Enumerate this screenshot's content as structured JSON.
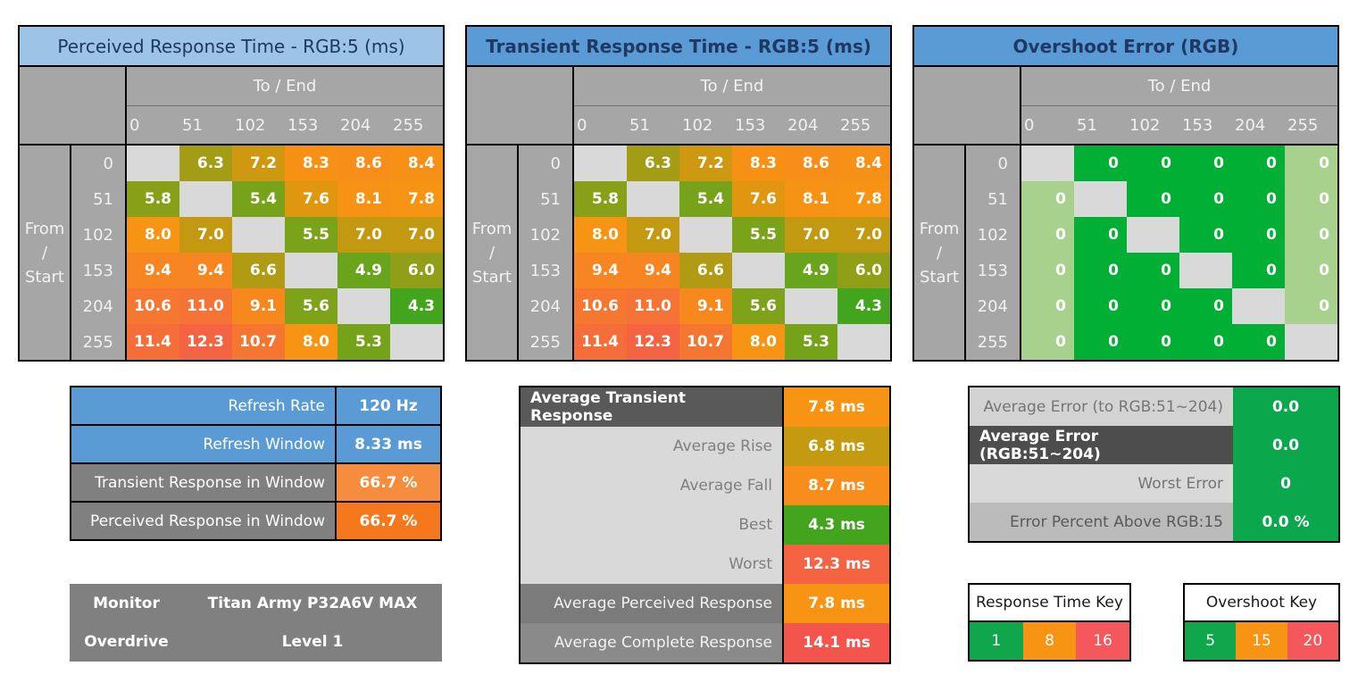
{
  "colors": {
    "title_bg_light_blue": "#9DC3E6",
    "title_bg_blue": "#5B9BD5",
    "title_text": "#1F3864",
    "header_gray": "#A6A6A6",
    "diagonal_gray": "#D9D9D9",
    "overshoot_green": "#00AF33",
    "overshoot_light_green": "#A9D18E",
    "summary_green": "#0AA74D",
    "key_green": "#0FA64C",
    "key_orange": "#F79413",
    "key_red": "#F4575C"
  },
  "matrix": {
    "to_label": "To / End",
    "from_lines": [
      "From",
      "/",
      "Start"
    ],
    "levels": [
      "0",
      "51",
      "102",
      "153",
      "204",
      "255"
    ],
    "value_colors": {
      "4.3": "#43A51E",
      "4.9": "#68A41C",
      "5.3": "#74A31A",
      "5.4": "#77A31A",
      "5.5": "#7AA31A",
      "5.6": "#7EA219",
      "5.8": "#87A018",
      "6.0": "#909F17",
      "6.3": "#A29D15",
      "6.6": "#B19B14",
      "7.0": "#C49912",
      "7.2": "#CE9811",
      "7.6": "#E1960F",
      "8.0": "#F79413",
      "8.1": "#F79314",
      "8.3": "#F79116",
      "8.4": "#F79017",
      "8.6": "#F78E19",
      "9.1": "#F6881E",
      "9.4": "#F68522",
      "10.6": "#F57730",
      "10.7": "#F57631",
      "11.0": "#F57335",
      "11.4": "#F56E39",
      "12.3": "#F46442"
    },
    "overshoot_palette": {
      "G": "#00AF33",
      "L": "#A9D18E",
      "D": "#D9D9D9"
    },
    "tables": [
      {
        "id": "perceived-response",
        "title": "Perceived Response Time - RGB:5 (ms)",
        "title_bg": "#9DC3E6",
        "title_bold": false,
        "kind": "response",
        "values": [
          [
            "",
            "6.3",
            "7.2",
            "8.3",
            "8.6",
            "8.4"
          ],
          [
            "5.8",
            "",
            "5.4",
            "7.6",
            "8.1",
            "7.8"
          ],
          [
            "8.0",
            "7.0",
            "",
            "5.5",
            "7.0",
            "7.0"
          ],
          [
            "9.4",
            "9.4",
            "6.6",
            "",
            "4.9",
            "6.0"
          ],
          [
            "10.6",
            "11.0",
            "9.1",
            "5.6",
            "",
            "4.3"
          ],
          [
            "11.4",
            "12.3",
            "10.7",
            "8.0",
            "5.3",
            ""
          ]
        ]
      },
      {
        "id": "transient-response",
        "title": "Transient Response Time - RGB:5 (ms)",
        "title_bg": "#5B9BD5",
        "title_bold": true,
        "kind": "response",
        "values": [
          [
            "",
            "6.3",
            "7.2",
            "8.3",
            "8.6",
            "8.4"
          ],
          [
            "5.8",
            "",
            "5.4",
            "7.6",
            "8.1",
            "7.8"
          ],
          [
            "8.0",
            "7.0",
            "",
            "5.5",
            "7.0",
            "7.0"
          ],
          [
            "9.4",
            "9.4",
            "6.6",
            "",
            "4.9",
            "6.0"
          ],
          [
            "10.6",
            "11.0",
            "9.1",
            "5.6",
            "",
            "4.3"
          ],
          [
            "11.4",
            "12.3",
            "10.7",
            "8.0",
            "5.3",
            ""
          ]
        ]
      },
      {
        "id": "overshoot-error",
        "title": "Overshoot Error (RGB)",
        "title_bg": "#5B9BD5",
        "title_bold": true,
        "kind": "overshoot",
        "values": [
          [
            "",
            "0",
            "0",
            "0",
            "0",
            "0"
          ],
          [
            "0",
            "",
            "0",
            "0",
            "0",
            "0"
          ],
          [
            "0",
            "0",
            "",
            "0",
            "0",
            "0"
          ],
          [
            "0",
            "0",
            "0",
            "",
            "0",
            "0"
          ],
          [
            "0",
            "0",
            "0",
            "0",
            "",
            "0"
          ],
          [
            "0",
            "0",
            "0",
            "0",
            "0",
            ""
          ]
        ],
        "cell_codes": [
          [
            "D",
            "G",
            "G",
            "G",
            "G",
            "L"
          ],
          [
            "L",
            "D",
            "G",
            "G",
            "G",
            "L"
          ],
          [
            "L",
            "G",
            "D",
            "G",
            "G",
            "L"
          ],
          [
            "L",
            "G",
            "G",
            "D",
            "G",
            "L"
          ],
          [
            "L",
            "G",
            "G",
            "G",
            "D",
            "L"
          ],
          [
            "L",
            "G",
            "G",
            "G",
            "G",
            "D"
          ]
        ]
      }
    ]
  },
  "refresh_summary": {
    "rows": [
      {
        "label": "Refresh Rate",
        "value": "120 Hz",
        "label_bg": "#5B9BD5",
        "label_color": "#FFFFFF",
        "value_bg": "#5B9BD5",
        "value_color": "#FFFFFF"
      },
      {
        "label": "Refresh Window",
        "value": "8.33 ms",
        "label_bg": "#5B9BD5",
        "label_color": "#FFFFFF",
        "value_bg": "#5B9BD5",
        "value_color": "#FFFFFF"
      },
      {
        "label": "Transient Response in Window",
        "value": "66.7 %",
        "label_bg": "#808080",
        "label_color": "#FFFFFF",
        "value_bg": "#F68C3E",
        "value_color": "#FFFFFF"
      },
      {
        "label": "Perceived Response in Window",
        "value": "66.7 %",
        "label_bg": "#808080",
        "label_color": "#FFFFFF",
        "value_bg": "#F5791C",
        "value_color": "#FFFFFF"
      }
    ]
  },
  "monitor_info": {
    "rows": [
      {
        "label": "Monitor",
        "value": "Titan Army P32A6V MAX"
      },
      {
        "label": "Overdrive",
        "value": "Level 1"
      }
    ]
  },
  "transient_summary": {
    "rows": [
      {
        "label": "Average Transient Response",
        "value": "7.8 ms",
        "label_bg": "#595959",
        "label_color": "#FFFFFF",
        "label_bold": true,
        "label_align": "center",
        "value_bg": "#F79413",
        "value_color": "#FFFFFF"
      },
      {
        "label": "Average Rise",
        "value": "6.8 ms",
        "label_bg": "#D9D9D9",
        "label_color": "#7F7F7F",
        "value_bg": "#C49B10",
        "value_color": "#FFFFFF"
      },
      {
        "label": "Average Fall",
        "value": "8.7 ms",
        "label_bg": "#D9D9D9",
        "label_color": "#7F7F7F",
        "value_bg": "#F78D1A",
        "value_color": "#FFFFFF"
      },
      {
        "label": "Best",
        "value": "4.3 ms",
        "label_bg": "#D9D9D9",
        "label_color": "#7F7F7F",
        "value_bg": "#43A51E",
        "value_color": "#FFFFFF"
      },
      {
        "label": "Worst",
        "value": "12.3 ms",
        "label_bg": "#D9D9D9",
        "label_color": "#7F7F7F",
        "value_bg": "#F46442",
        "value_color": "#FFFFFF"
      },
      {
        "label": "Average Perceived Response",
        "value": "7.8 ms",
        "label_bg": "#7B7B7B",
        "label_color": "#F2F2F2",
        "value_bg": "#F79413",
        "value_color": "#FFFFFF"
      },
      {
        "label": "Average Complete Response",
        "value": "14.1 ms",
        "label_bg": "#8A8A8A",
        "label_color": "#F2F2F2",
        "value_bg": "#F3544C",
        "value_color": "#FFFFFF"
      }
    ]
  },
  "error_summary": {
    "rows": [
      {
        "label": "Average Error (to RGB:51~204)",
        "value": "0.0",
        "label_bg": "#D3D3D3",
        "label_color": "#757575",
        "value_bg": "#0AA74D",
        "value_color": "#FFFFFF"
      },
      {
        "label": "Average Error (RGB:51~204)",
        "value": "0.0",
        "label_bg": "#4D4D4D",
        "label_color": "#FFFFFF",
        "label_bold": true,
        "value_bg": "#0AA74D",
        "value_color": "#FFFFFF"
      },
      {
        "label": "Worst Error",
        "value": "0",
        "label_bg": "#D9D9D9",
        "label_color": "#757575",
        "value_bg": "#0AA74D",
        "value_color": "#FFFFFF"
      },
      {
        "label": "Error Percent Above RGB:15",
        "value": "0.0 %",
        "label_bg": "#BBBBBB",
        "label_color": "#595959",
        "value_bg": "#0AA74D",
        "value_color": "#FFFFFF"
      }
    ]
  },
  "keys": [
    {
      "title": "Response Time Key",
      "cells": [
        {
          "v": "1",
          "bg": "#0FA64C"
        },
        {
          "v": "8",
          "bg": "#F79413"
        },
        {
          "v": "16",
          "bg": "#F4575C"
        }
      ]
    },
    {
      "title": "Overshoot Key",
      "cells": [
        {
          "v": "5",
          "bg": "#0FA64C"
        },
        {
          "v": "15",
          "bg": "#F79413"
        },
        {
          "v": "20",
          "bg": "#F4575C"
        }
      ]
    }
  ],
  "chart_data": [
    {
      "type": "heatmap",
      "title": "Perceived Response Time - RGB:5 (ms)",
      "xlabel": "To / End",
      "ylabel": "From / Start",
      "units": "ms",
      "x": [
        0,
        51,
        102,
        153,
        204,
        255
      ],
      "y": [
        0,
        51,
        102,
        153,
        204,
        255
      ],
      "values": [
        [
          null,
          6.3,
          7.2,
          8.3,
          8.6,
          8.4
        ],
        [
          5.8,
          null,
          5.4,
          7.6,
          8.1,
          7.8
        ],
        [
          8.0,
          7.0,
          null,
          5.5,
          7.0,
          7.0
        ],
        [
          9.4,
          9.4,
          6.6,
          null,
          4.9,
          6.0
        ],
        [
          10.6,
          11.0,
          9.1,
          5.6,
          null,
          4.3
        ],
        [
          11.4,
          12.3,
          10.7,
          8.0,
          5.3,
          null
        ]
      ],
      "color_scale": {
        "green": 1,
        "orange": 8,
        "red": 16
      }
    },
    {
      "type": "heatmap",
      "title": "Transient Response Time - RGB:5 (ms)",
      "xlabel": "To / End",
      "ylabel": "From / Start",
      "units": "ms",
      "x": [
        0,
        51,
        102,
        153,
        204,
        255
      ],
      "y": [
        0,
        51,
        102,
        153,
        204,
        255
      ],
      "values": [
        [
          null,
          6.3,
          7.2,
          8.3,
          8.6,
          8.4
        ],
        [
          5.8,
          null,
          5.4,
          7.6,
          8.1,
          7.8
        ],
        [
          8.0,
          7.0,
          null,
          5.5,
          7.0,
          7.0
        ],
        [
          9.4,
          9.4,
          6.6,
          null,
          4.9,
          6.0
        ],
        [
          10.6,
          11.0,
          9.1,
          5.6,
          null,
          4.3
        ],
        [
          11.4,
          12.3,
          10.7,
          8.0,
          5.3,
          null
        ]
      ],
      "color_scale": {
        "green": 1,
        "orange": 8,
        "red": 16
      }
    },
    {
      "type": "heatmap",
      "title": "Overshoot Error (RGB)",
      "xlabel": "To / End",
      "ylabel": "From / Start",
      "units": "RGB",
      "x": [
        0,
        51,
        102,
        153,
        204,
        255
      ],
      "y": [
        0,
        51,
        102,
        153,
        204,
        255
      ],
      "values": [
        [
          null,
          0,
          0,
          0,
          0,
          0
        ],
        [
          0,
          null,
          0,
          0,
          0,
          0
        ],
        [
          0,
          0,
          null,
          0,
          0,
          0
        ],
        [
          0,
          0,
          0,
          null,
          0,
          0
        ],
        [
          0,
          0,
          0,
          0,
          null,
          0
        ],
        [
          0,
          0,
          0,
          0,
          0,
          null
        ]
      ],
      "color_scale": {
        "green": 5,
        "orange": 15,
        "red": 20
      }
    },
    {
      "type": "table",
      "title": "Summary",
      "rows": [
        [
          "Refresh Rate",
          "120 Hz"
        ],
        [
          "Refresh Window",
          "8.33 ms"
        ],
        [
          "Transient Response in Window",
          "66.7 %"
        ],
        [
          "Perceived Response in Window",
          "66.7 %"
        ],
        [
          "Average Transient Response",
          "7.8 ms"
        ],
        [
          "Average Rise",
          "6.8 ms"
        ],
        [
          "Average Fall",
          "8.7 ms"
        ],
        [
          "Best",
          "4.3 ms"
        ],
        [
          "Worst",
          "12.3 ms"
        ],
        [
          "Average Perceived Response",
          "7.8 ms"
        ],
        [
          "Average Complete Response",
          "14.1 ms"
        ],
        [
          "Average Error (to RGB:51~204)",
          "0.0"
        ],
        [
          "Average Error (RGB:51~204)",
          "0.0"
        ],
        [
          "Worst Error",
          "0"
        ],
        [
          "Error Percent Above RGB:15",
          "0.0 %"
        ],
        [
          "Monitor",
          "Titan Army P32A6V MAX"
        ],
        [
          "Overdrive",
          "Level 1"
        ]
      ]
    }
  ]
}
